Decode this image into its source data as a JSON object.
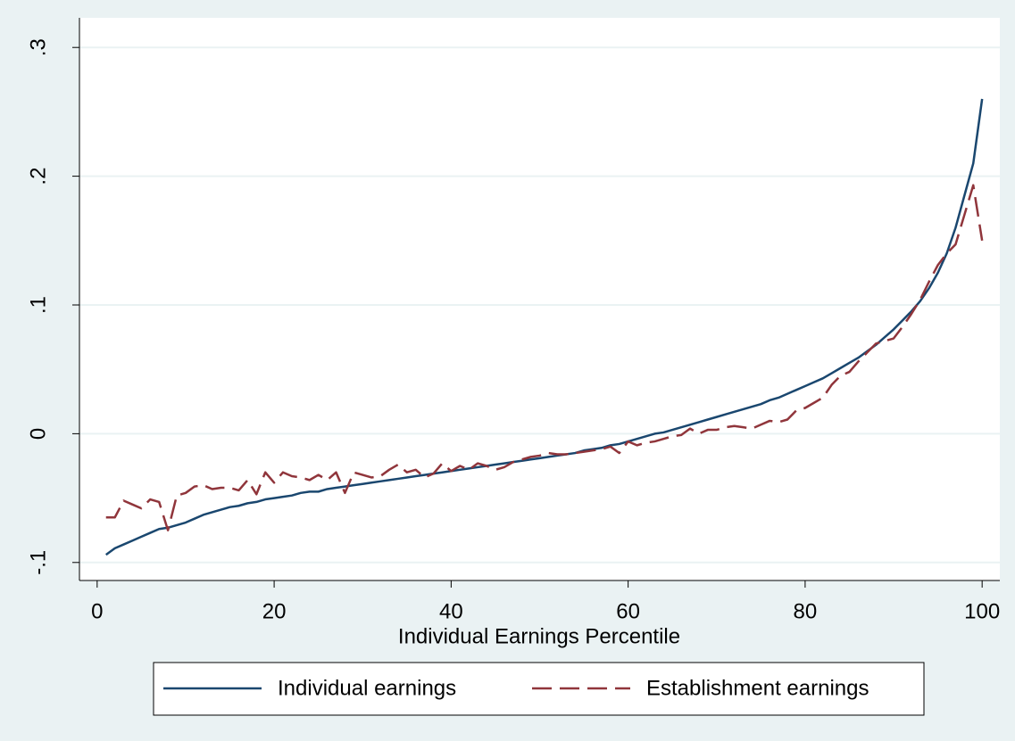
{
  "chart_data": {
    "type": "line",
    "xlabel": "Individual Earnings Percentile",
    "x": [
      1,
      2,
      3,
      4,
      5,
      6,
      7,
      8,
      9,
      10,
      11,
      12,
      13,
      14,
      15,
      16,
      17,
      18,
      19,
      20,
      21,
      22,
      23,
      24,
      25,
      26,
      27,
      28,
      29,
      30,
      31,
      32,
      33,
      34,
      35,
      36,
      37,
      38,
      39,
      40,
      41,
      42,
      43,
      44,
      45,
      46,
      47,
      48,
      49,
      50,
      51,
      52,
      53,
      54,
      55,
      56,
      57,
      58,
      59,
      60,
      61,
      62,
      63,
      64,
      65,
      66,
      67,
      68,
      69,
      70,
      71,
      72,
      73,
      74,
      75,
      76,
      77,
      78,
      79,
      80,
      81,
      82,
      83,
      84,
      85,
      86,
      87,
      88,
      89,
      90,
      91,
      92,
      93,
      94,
      95,
      96,
      97,
      98,
      99,
      100
    ],
    "series": [
      {
        "name": "Individual earnings",
        "color": "#1a476f",
        "dash": false,
        "values": [
          -0.094,
          -0.089,
          -0.086,
          -0.083,
          -0.08,
          -0.077,
          -0.074,
          -0.073,
          -0.071,
          -0.069,
          -0.066,
          -0.063,
          -0.061,
          -0.059,
          -0.057,
          -0.056,
          -0.054,
          -0.053,
          -0.051,
          -0.05,
          -0.049,
          -0.048,
          -0.046,
          -0.045,
          -0.045,
          -0.043,
          -0.042,
          -0.041,
          -0.04,
          -0.039,
          -0.038,
          -0.037,
          -0.036,
          -0.035,
          -0.034,
          -0.033,
          -0.032,
          -0.031,
          -0.03,
          -0.029,
          -0.028,
          -0.027,
          -0.026,
          -0.025,
          -0.024,
          -0.023,
          -0.022,
          -0.021,
          -0.02,
          -0.019,
          -0.018,
          -0.017,
          -0.016,
          -0.015,
          -0.013,
          -0.012,
          -0.011,
          -0.009,
          -0.008,
          -0.006,
          -0.004,
          -0.002,
          0.0,
          0.001,
          0.003,
          0.005,
          0.007,
          0.009,
          0.011,
          0.013,
          0.015,
          0.017,
          0.019,
          0.021,
          0.023,
          0.026,
          0.028,
          0.031,
          0.034,
          0.037,
          0.04,
          0.043,
          0.047,
          0.051,
          0.055,
          0.059,
          0.064,
          0.069,
          0.075,
          0.081,
          0.088,
          0.095,
          0.103,
          0.113,
          0.125,
          0.14,
          0.16,
          0.185,
          0.21,
          0.26
        ]
      },
      {
        "name": "Establishment earnings",
        "color": "#90353b",
        "dash": true,
        "values": [
          -0.065,
          -0.065,
          -0.052,
          -0.055,
          -0.058,
          -0.051,
          -0.053,
          -0.075,
          -0.048,
          -0.046,
          -0.041,
          -0.04,
          -0.043,
          -0.042,
          -0.042,
          -0.044,
          -0.036,
          -0.047,
          -0.03,
          -0.038,
          -0.03,
          -0.033,
          -0.034,
          -0.036,
          -0.032,
          -0.036,
          -0.03,
          -0.046,
          -0.03,
          -0.032,
          -0.034,
          -0.033,
          -0.028,
          -0.024,
          -0.03,
          -0.028,
          -0.034,
          -0.031,
          -0.023,
          -0.029,
          -0.025,
          -0.028,
          -0.023,
          -0.025,
          -0.028,
          -0.026,
          -0.022,
          -0.02,
          -0.018,
          -0.017,
          -0.015,
          -0.016,
          -0.016,
          -0.015,
          -0.014,
          -0.013,
          -0.012,
          -0.01,
          -0.015,
          -0.006,
          -0.009,
          -0.007,
          -0.006,
          -0.004,
          -0.002,
          -0.001,
          0.004,
          0.0,
          0.003,
          0.003,
          0.005,
          0.006,
          0.005,
          0.004,
          0.007,
          0.01,
          0.009,
          0.011,
          0.018,
          0.02,
          0.024,
          0.028,
          0.038,
          0.045,
          0.048,
          0.056,
          0.063,
          0.07,
          0.072,
          0.074,
          0.083,
          0.093,
          0.104,
          0.118,
          0.131,
          0.14,
          0.147,
          0.17,
          0.193,
          0.15
        ]
      }
    ],
    "xlim": [
      -2,
      102
    ],
    "ylim": [
      -0.114,
      0.323
    ],
    "xticks": [
      0,
      20,
      40,
      60,
      80,
      100
    ],
    "yticks": [
      {
        "value": -0.1,
        "label": "-.1"
      },
      0,
      {
        "value": 0.1,
        "label": ".1"
      },
      {
        "value": 0.2,
        "label": ".2"
      },
      {
        "value": 0.3,
        "label": ".3"
      }
    ],
    "grid": true,
    "legend": "bottom"
  }
}
